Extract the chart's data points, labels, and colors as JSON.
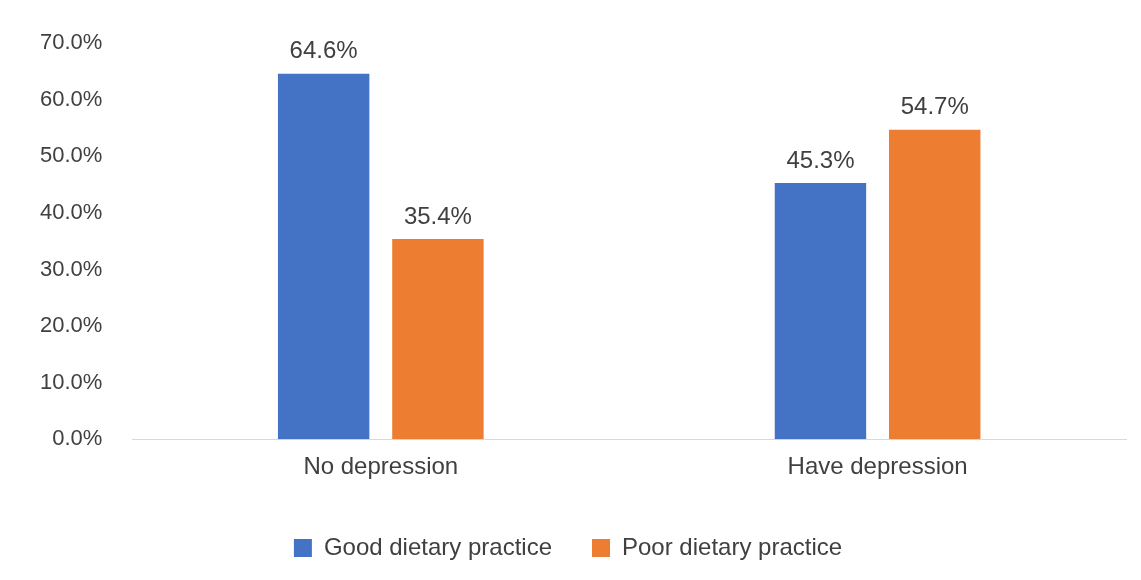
{
  "chart_data": {
    "type": "bar",
    "categories": [
      "No depression",
      "Have depression"
    ],
    "series": [
      {
        "name": "Good dietary practice",
        "color": "#4472c4",
        "values": [
          64.6,
          45.3
        ],
        "value_labels": [
          "64.6%",
          "45.3%"
        ]
      },
      {
        "name": "Poor dietary practice",
        "color": "#ed7d31",
        "values": [
          35.4,
          54.7
        ],
        "value_labels": [
          "35.4%",
          "54.7%"
        ]
      }
    ],
    "ylim": [
      0,
      70
    ],
    "yticks": [
      {
        "value": 0,
        "label": "0.0%"
      },
      {
        "value": 10,
        "label": "10.0%"
      },
      {
        "value": 20,
        "label": "20.0%"
      },
      {
        "value": 30,
        "label": "30.0%"
      },
      {
        "value": 40,
        "label": "40.0%"
      },
      {
        "value": 50,
        "label": "50.0%"
      },
      {
        "value": 60,
        "label": "60.0%"
      },
      {
        "value": 70,
        "label": "70.0%"
      }
    ],
    "grid": false,
    "legend": "bottom"
  }
}
